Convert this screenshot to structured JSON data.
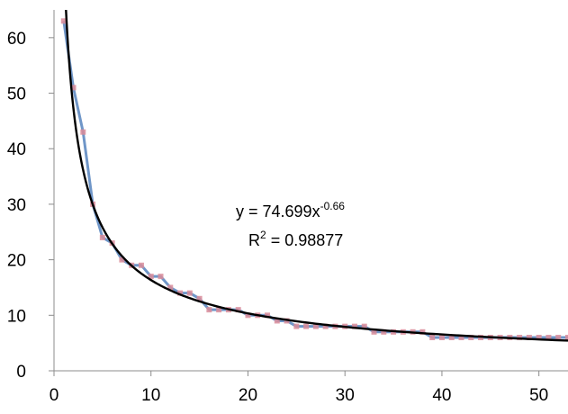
{
  "chart_data": {
    "type": "scatter",
    "title": "",
    "xlabel": "",
    "ylabel": "",
    "xlim": [
      0,
      53
    ],
    "ylim": [
      0,
      65
    ],
    "x_ticks": [
      0,
      10,
      20,
      30,
      40,
      50
    ],
    "y_ticks": [
      0,
      10,
      20,
      30,
      40,
      50,
      60
    ],
    "grid": false,
    "legend": "none",
    "series": [
      {
        "style": "line-with-markers",
        "line_color": "#6f96c8",
        "marker_color": "#d98c9a",
        "x": [
          1,
          2,
          3,
          4,
          5,
          6,
          7,
          8,
          9,
          10,
          11,
          12,
          13,
          14,
          15,
          16,
          17,
          18,
          19,
          20,
          21,
          22,
          23,
          24,
          25,
          26,
          27,
          28,
          29,
          30,
          31,
          32,
          33,
          34,
          35,
          36,
          37,
          38,
          39,
          40,
          41,
          42,
          43,
          44,
          45,
          46,
          47,
          48,
          49,
          50,
          51,
          52,
          53
        ],
        "y": [
          63,
          51,
          43,
          30,
          24,
          23,
          20,
          19,
          19,
          17,
          17,
          15,
          14,
          14,
          13,
          11,
          11,
          11,
          11,
          10,
          10,
          10,
          9,
          9,
          8,
          8,
          8,
          8,
          8,
          8,
          8,
          8,
          7,
          7,
          7,
          7,
          7,
          7,
          6,
          6,
          6,
          6,
          6,
          6,
          6,
          6,
          6,
          6,
          6,
          6,
          6,
          6,
          6
        ]
      },
      {
        "style": "trendline",
        "line_color": "#000000",
        "fit": "power",
        "coefficient": 74.699,
        "exponent": -0.66,
        "r_squared": 0.98877
      }
    ],
    "annotations": {
      "equation_base": "y = 74.699x",
      "equation_exponent": "-0.66",
      "r2_label": "R",
      "r2_exponent": "2",
      "r2_value": " = 0.98877"
    }
  }
}
